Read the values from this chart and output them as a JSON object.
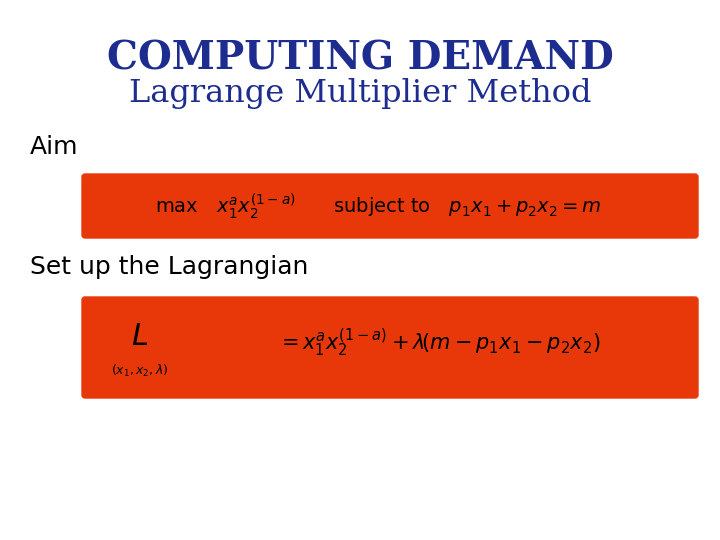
{
  "title_line1": "COMPUTING DEMAND",
  "title_line2": "Lagrange Multiplier Method",
  "title_color": "#1c2d8f",
  "background_color": "#ffffff",
  "red_box_color": "#e8380a",
  "aim_label": "Aim",
  "setup_label": "Set up the Lagrangian",
  "label_color": "#000000",
  "formula_color": "#000000",
  "figsize": [
    7.2,
    5.4
  ],
  "dpi": 100
}
